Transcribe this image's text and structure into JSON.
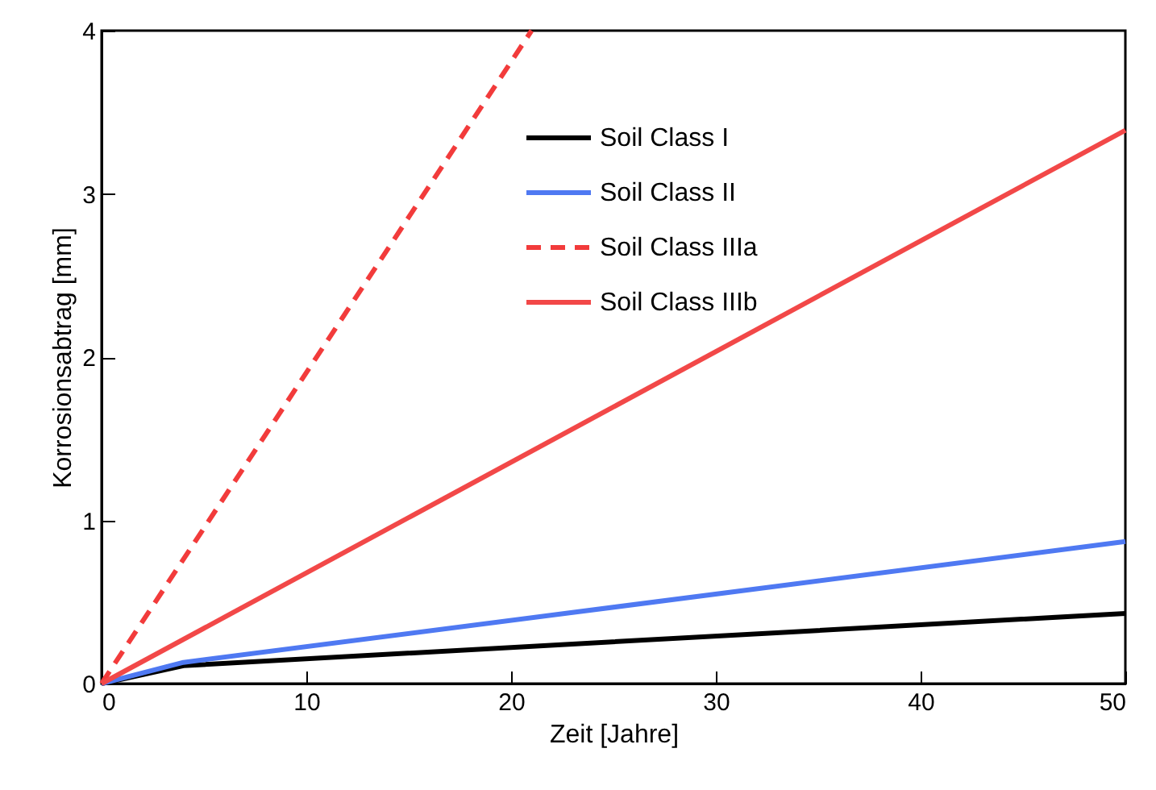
{
  "chart_data": {
    "type": "line",
    "xlabel": "Zeit [Jahre]",
    "ylabel": "Korrosionsabtrag [mm]",
    "xlim": [
      0,
      50
    ],
    "xticks": [
      0,
      10,
      20,
      30,
      40,
      50
    ],
    "ylim": [
      0,
      4
    ],
    "yticks": [
      0,
      1,
      2,
      3,
      4
    ],
    "grid": false,
    "legend": "top",
    "marker": "none",
    "series": [
      {
        "name": "Soil Class I",
        "color": "#000000",
        "x": [
          0,
          4,
          50
        ],
        "values": [
          0,
          0.11,
          0.43
        ],
        "line_style": "solid"
      },
      {
        "name": "Soil Class II",
        "color": "#4f79f2",
        "x": [
          0,
          4,
          50
        ],
        "values": [
          0,
          0.13,
          0.87
        ],
        "line_style": "solid"
      },
      {
        "name": "Soil Class IIIa",
        "color": "#f23b3b",
        "x": [
          0,
          21
        ],
        "values": [
          0,
          4
        ],
        "line_style": "dashed"
      },
      {
        "name": "Soil Class IIIb",
        "color": "#f24848",
        "x": [
          0,
          50
        ],
        "values": [
          0,
          3.39
        ],
        "line_style": "solid"
      }
    ]
  }
}
